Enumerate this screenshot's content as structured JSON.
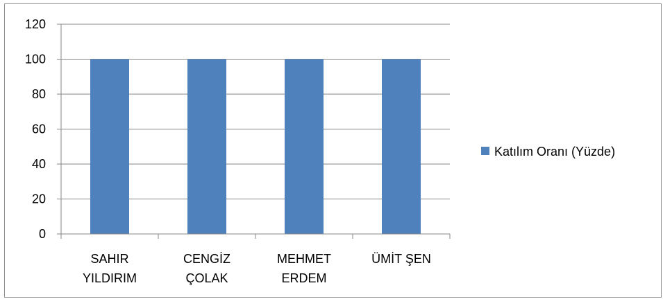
{
  "chart_data": {
    "type": "bar",
    "categories": [
      [
        "SAHIR",
        "YILDIRIM"
      ],
      [
        "CENGİZ",
        "ÇOLAK"
      ],
      [
        "MEHMET",
        "ERDEM"
      ],
      [
        "ÜMİT ŞEN"
      ]
    ],
    "series": [
      {
        "name": "Katılım Oranı (Yüzde)",
        "values": [
          100,
          100,
          100,
          100
        ],
        "color": "#4f81bd"
      }
    ],
    "ylim": [
      0,
      120
    ],
    "yticks": [
      0,
      20,
      40,
      60,
      80,
      100,
      120
    ],
    "grid": true,
    "legend_position": "right",
    "title": "",
    "xlabel": "",
    "ylabel": ""
  }
}
